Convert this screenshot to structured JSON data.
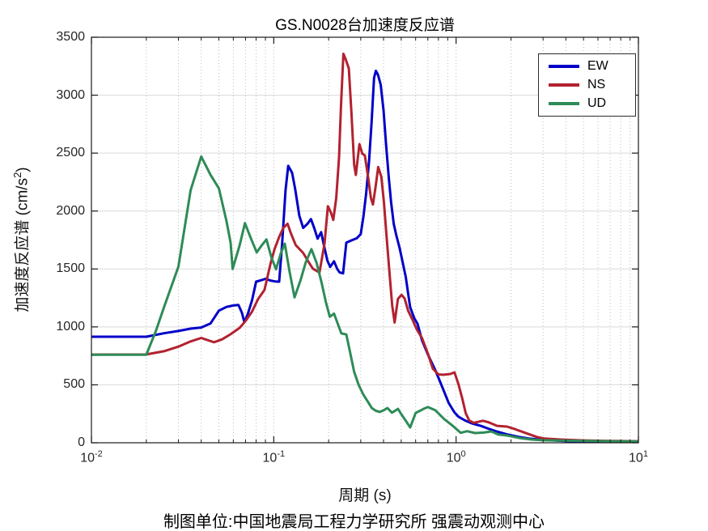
{
  "title": "GS.N0028台加速度反应谱",
  "caption": "制图单位:中国地震局工程力学研究所 强震动观测中心",
  "chart_data": {
    "type": "line",
    "title": "GS.N0028台加速度反应谱",
    "xlabel": "周期 (s)",
    "ylabel": "加速度反应谱 (cm/s²)",
    "ylabel_parts": {
      "pre": "加速度反应谱 (cm/s",
      "sup": "2",
      "post": ")"
    },
    "x_scale": "log",
    "xlim": [
      0.01,
      10
    ],
    "ylim": [
      0,
      3500
    ],
    "y_ticks": [
      0,
      500,
      1000,
      1500,
      2000,
      2500,
      3000,
      3500
    ],
    "x_tick_base": "10",
    "x_tick_exponents": [
      "-2",
      "-1",
      "0",
      "1"
    ],
    "grid": true,
    "legend_position": "top-right",
    "axis_color": "#1a1a1a",
    "grid_h_color": "#d9d9d9",
    "grid_v_color": "#bdbdbd",
    "series": [
      {
        "name": "EW",
        "color": "#0000C8",
        "points": [
          [
            0.01,
            915
          ],
          [
            0.02,
            915
          ],
          [
            0.025,
            945
          ],
          [
            0.03,
            965
          ],
          [
            0.035,
            985
          ],
          [
            0.04,
            995
          ],
          [
            0.045,
            1030
          ],
          [
            0.05,
            1140
          ],
          [
            0.055,
            1172
          ],
          [
            0.06,
            1185
          ],
          [
            0.064,
            1190
          ],
          [
            0.067,
            1120
          ],
          [
            0.069,
            1040
          ],
          [
            0.072,
            1110
          ],
          [
            0.076,
            1230
          ],
          [
            0.08,
            1390
          ],
          [
            0.086,
            1405
          ],
          [
            0.09,
            1415
          ],
          [
            0.096,
            1400
          ],
          [
            0.102,
            1392
          ],
          [
            0.107,
            1390
          ],
          [
            0.111,
            1700
          ],
          [
            0.116,
            2180
          ],
          [
            0.12,
            2390
          ],
          [
            0.126,
            2330
          ],
          [
            0.131,
            2190
          ],
          [
            0.138,
            1960
          ],
          [
            0.145,
            1855
          ],
          [
            0.153,
            1890
          ],
          [
            0.16,
            1930
          ],
          [
            0.167,
            1850
          ],
          [
            0.174,
            1762
          ],
          [
            0.182,
            1818
          ],
          [
            0.19,
            1680
          ],
          [
            0.197,
            1570
          ],
          [
            0.204,
            1518
          ],
          [
            0.214,
            1566
          ],
          [
            0.223,
            1500
          ],
          [
            0.23,
            1470
          ],
          [
            0.24,
            1462
          ],
          [
            0.25,
            1727
          ],
          [
            0.27,
            1750
          ],
          [
            0.285,
            1765
          ],
          [
            0.3,
            1800
          ],
          [
            0.31,
            1950
          ],
          [
            0.321,
            2150
          ],
          [
            0.333,
            2430
          ],
          [
            0.344,
            2760
          ],
          [
            0.355,
            3150
          ],
          [
            0.363,
            3210
          ],
          [
            0.373,
            3175
          ],
          [
            0.386,
            3090
          ],
          [
            0.4,
            2870
          ],
          [
            0.414,
            2550
          ],
          [
            0.428,
            2280
          ],
          [
            0.44,
            2080
          ],
          [
            0.455,
            1890
          ],
          [
            0.47,
            1790
          ],
          [
            0.49,
            1680
          ],
          [
            0.51,
            1552
          ],
          [
            0.53,
            1430
          ],
          [
            0.546,
            1288
          ],
          [
            0.56,
            1170
          ],
          [
            0.59,
            1075
          ],
          [
            0.615,
            1025
          ],
          [
            0.65,
            885
          ],
          [
            0.7,
            762
          ],
          [
            0.77,
            625
          ],
          [
            0.845,
            470
          ],
          [
            0.91,
            345
          ],
          [
            0.98,
            262
          ],
          [
            1.03,
            225
          ],
          [
            1.12,
            192
          ],
          [
            1.22,
            168
          ],
          [
            1.37,
            145
          ],
          [
            1.5,
            122
          ],
          [
            1.65,
            100
          ],
          [
            1.9,
            73
          ],
          [
            2.2,
            51
          ],
          [
            2.5,
            37
          ],
          [
            3,
            25
          ],
          [
            4,
            15
          ],
          [
            5.5,
            9
          ],
          [
            7.5,
            6
          ],
          [
            10,
            4
          ]
        ]
      },
      {
        "name": "NS",
        "color": "#B22230",
        "points": [
          [
            0.01,
            761
          ],
          [
            0.02,
            762
          ],
          [
            0.025,
            790
          ],
          [
            0.03,
            830
          ],
          [
            0.035,
            875
          ],
          [
            0.04,
            905
          ],
          [
            0.047,
            868
          ],
          [
            0.052,
            892
          ],
          [
            0.058,
            937
          ],
          [
            0.065,
            992
          ],
          [
            0.07,
            1050
          ],
          [
            0.076,
            1132
          ],
          [
            0.082,
            1240
          ],
          [
            0.089,
            1320
          ],
          [
            0.096,
            1545
          ],
          [
            0.101,
            1671
          ],
          [
            0.107,
            1776
          ],
          [
            0.113,
            1856
          ],
          [
            0.119,
            1890
          ],
          [
            0.124,
            1810
          ],
          [
            0.132,
            1706
          ],
          [
            0.145,
            1638
          ],
          [
            0.155,
            1562
          ],
          [
            0.164,
            1503
          ],
          [
            0.178,
            1469
          ],
          [
            0.19,
            1720
          ],
          [
            0.198,
            2042
          ],
          [
            0.206,
            1985
          ],
          [
            0.212,
            1923
          ],
          [
            0.22,
            2110
          ],
          [
            0.228,
            2460
          ],
          [
            0.234,
            2920
          ],
          [
            0.241,
            3357
          ],
          [
            0.248,
            3310
          ],
          [
            0.258,
            3230
          ],
          [
            0.267,
            2840
          ],
          [
            0.276,
            2400
          ],
          [
            0.282,
            2312
          ],
          [
            0.295,
            2578
          ],
          [
            0.306,
            2495
          ],
          [
            0.316,
            2480
          ],
          [
            0.33,
            2280
          ],
          [
            0.341,
            2112
          ],
          [
            0.35,
            2056
          ],
          [
            0.362,
            2210
          ],
          [
            0.374,
            2380
          ],
          [
            0.389,
            2295
          ],
          [
            0.402,
            2075
          ],
          [
            0.415,
            1795
          ],
          [
            0.43,
            1490
          ],
          [
            0.446,
            1185
          ],
          [
            0.46,
            1038
          ],
          [
            0.48,
            1242
          ],
          [
            0.502,
            1276
          ],
          [
            0.522,
            1246
          ],
          [
            0.546,
            1140
          ],
          [
            0.576,
            1063
          ],
          [
            0.61,
            975
          ],
          [
            0.65,
            905
          ],
          [
            0.7,
            770
          ],
          [
            0.745,
            640
          ],
          [
            0.8,
            590
          ],
          [
            0.85,
            587
          ],
          [
            0.93,
            594
          ],
          [
            0.98,
            608
          ],
          [
            1.03,
            505
          ],
          [
            1.08,
            385
          ],
          [
            1.13,
            255
          ],
          [
            1.18,
            192
          ],
          [
            1.25,
            172
          ],
          [
            1.32,
            180
          ],
          [
            1.4,
            190
          ],
          [
            1.5,
            178
          ],
          [
            1.68,
            146
          ],
          [
            1.9,
            140
          ],
          [
            2.1,
            118
          ],
          [
            2.4,
            85
          ],
          [
            2.77,
            50
          ],
          [
            3.05,
            36
          ],
          [
            3.75,
            28
          ],
          [
            5,
            20
          ],
          [
            7,
            16
          ],
          [
            10,
            13
          ]
        ]
      },
      {
        "name": "UD",
        "color": "#2E8B57",
        "points": [
          [
            0.01,
            760
          ],
          [
            0.02,
            760
          ],
          [
            0.0225,
            960
          ],
          [
            0.025,
            1170
          ],
          [
            0.03,
            1520
          ],
          [
            0.035,
            2180
          ],
          [
            0.04,
            2470
          ],
          [
            0.045,
            2312
          ],
          [
            0.05,
            2196
          ],
          [
            0.055,
            1916
          ],
          [
            0.058,
            1727
          ],
          [
            0.0595,
            1500
          ],
          [
            0.065,
            1705
          ],
          [
            0.0695,
            1895
          ],
          [
            0.075,
            1762
          ],
          [
            0.0807,
            1643
          ],
          [
            0.086,
            1705
          ],
          [
            0.0912,
            1755
          ],
          [
            0.097,
            1600
          ],
          [
            0.103,
            1497
          ],
          [
            0.109,
            1630
          ],
          [
            0.115,
            1718
          ],
          [
            0.122,
            1480
          ],
          [
            0.13,
            1255
          ],
          [
            0.14,
            1400
          ],
          [
            0.15,
            1560
          ],
          [
            0.161,
            1671
          ],
          [
            0.172,
            1550
          ],
          [
            0.183,
            1380
          ],
          [
            0.193,
            1215
          ],
          [
            0.203,
            1088
          ],
          [
            0.214,
            1115
          ],
          [
            0.224,
            1030
          ],
          [
            0.235,
            944
          ],
          [
            0.25,
            935
          ],
          [
            0.263,
            770
          ],
          [
            0.276,
            612
          ],
          [
            0.292,
            500
          ],
          [
            0.31,
            415
          ],
          [
            0.33,
            348
          ],
          [
            0.345,
            300
          ],
          [
            0.363,
            276
          ],
          [
            0.382,
            266
          ],
          [
            0.4,
            280
          ],
          [
            0.42,
            300
          ],
          [
            0.445,
            260
          ],
          [
            0.465,
            278
          ],
          [
            0.48,
            293
          ],
          [
            0.5,
            248
          ],
          [
            0.53,
            190
          ],
          [
            0.56,
            132
          ],
          [
            0.6,
            258
          ],
          [
            0.645,
            282
          ],
          [
            0.67,
            296
          ],
          [
            0.7,
            308
          ],
          [
            0.77,
            280
          ],
          [
            0.86,
            205
          ],
          [
            0.96,
            145
          ],
          [
            1.06,
            86
          ],
          [
            1.15,
            100
          ],
          [
            1.27,
            84
          ],
          [
            1.42,
            88
          ],
          [
            1.56,
            98
          ],
          [
            1.7,
            72
          ],
          [
            1.9,
            63
          ],
          [
            2.25,
            40
          ],
          [
            2.6,
            28
          ],
          [
            3,
            22
          ],
          [
            4,
            18
          ],
          [
            6,
            15
          ],
          [
            10,
            12
          ]
        ]
      }
    ]
  }
}
